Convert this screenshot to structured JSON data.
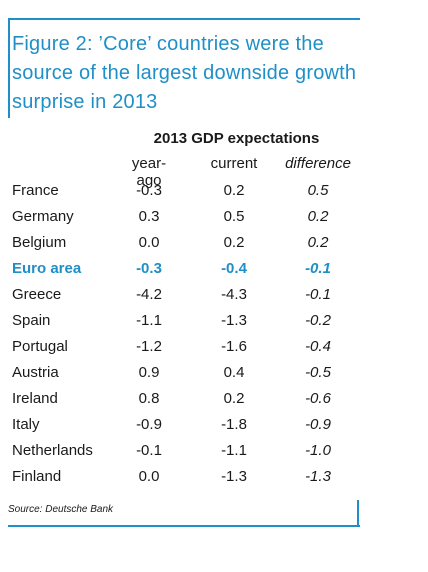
{
  "title": "Figure 2: ’Core’ countries were the source of the largest downside growth surprise in 2013",
  "chart_data": {
    "type": "table",
    "table_title": "2013 GDP expectations",
    "columns": [
      "year-ago",
      "current",
      "difference"
    ],
    "rows": [
      {
        "country": "France",
        "year_ago": "-0.3",
        "current": "0.2",
        "difference": "0.5"
      },
      {
        "country": "Germany",
        "year_ago": "0.3",
        "current": "0.5",
        "difference": "0.2"
      },
      {
        "country": "Belgium",
        "year_ago": "0.0",
        "current": "0.2",
        "difference": "0.2"
      },
      {
        "country": "Euro area",
        "year_ago": "-0.3",
        "current": "-0.4",
        "difference": "-0.1",
        "highlight": true
      },
      {
        "country": "Greece",
        "year_ago": "-4.2",
        "current": "-4.3",
        "difference": "-0.1"
      },
      {
        "country": "Spain",
        "year_ago": "-1.1",
        "current": "-1.3",
        "difference": "-0.2"
      },
      {
        "country": "Portugal",
        "year_ago": "-1.2",
        "current": "-1.6",
        "difference": "-0.4"
      },
      {
        "country": "Austria",
        "year_ago": "0.9",
        "current": "0.4",
        "difference": "-0.5"
      },
      {
        "country": "Ireland",
        "year_ago": "0.8",
        "current": "0.2",
        "difference": "-0.6"
      },
      {
        "country": "Italy",
        "year_ago": "-0.9",
        "current": "-1.8",
        "difference": "-0.9"
      },
      {
        "country": "Netherlands",
        "year_ago": "-0.1",
        "current": "-1.1",
        "difference": "-1.0"
      },
      {
        "country": "Finland",
        "year_ago": "0.0",
        "current": "-1.3",
        "difference": "-1.3"
      }
    ]
  },
  "source": "Source: Deutsche Bank",
  "colors": {
    "accent": "#1f8fc7",
    "text": "#1a1a1a"
  }
}
